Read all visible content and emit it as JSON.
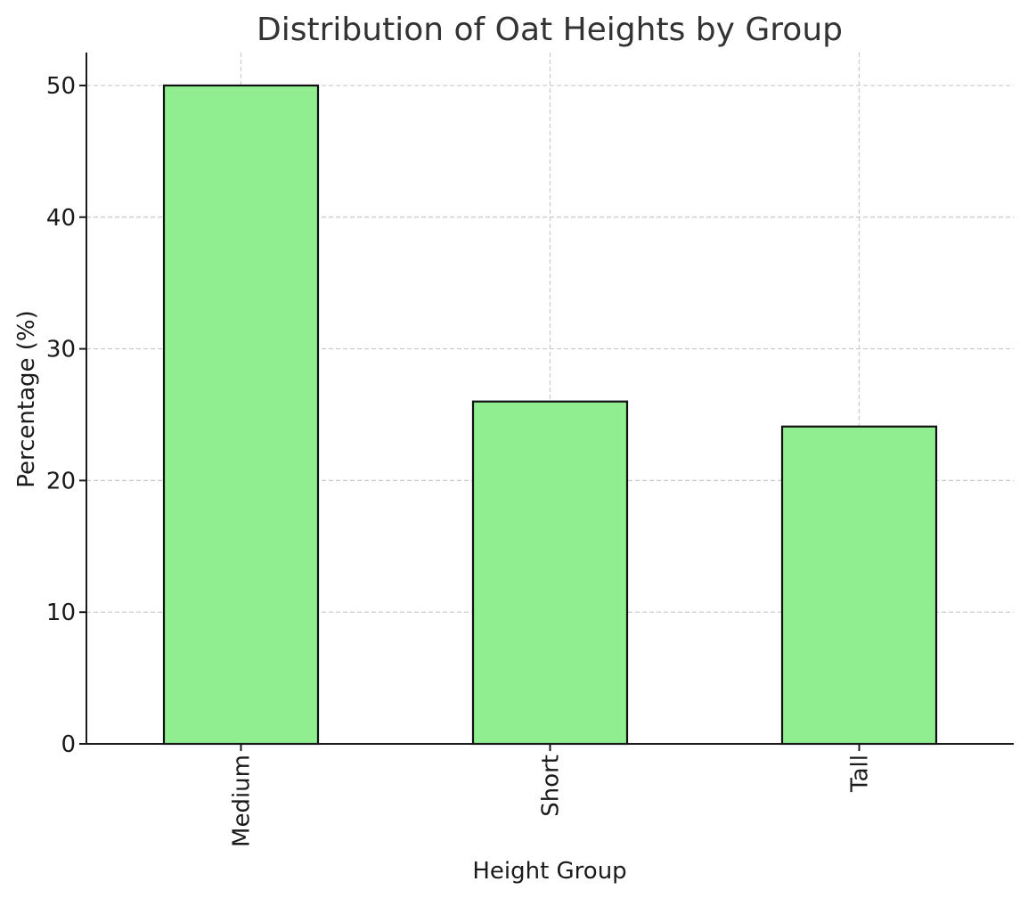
{
  "chart_data": {
    "type": "bar",
    "title": "Distribution of Oat Heights by Group",
    "xlabel": "Height Group",
    "ylabel": "Percentage (%)",
    "categories": [
      "Medium",
      "Short",
      "Tall"
    ],
    "values": [
      50.0,
      26.0,
      24.1
    ],
    "ylim": [
      0,
      52.5
    ],
    "yticks": [
      0,
      10,
      20,
      30,
      40,
      50
    ],
    "grid": true,
    "bar_color": "#90ee90",
    "bar_edge_color": "#111111"
  }
}
